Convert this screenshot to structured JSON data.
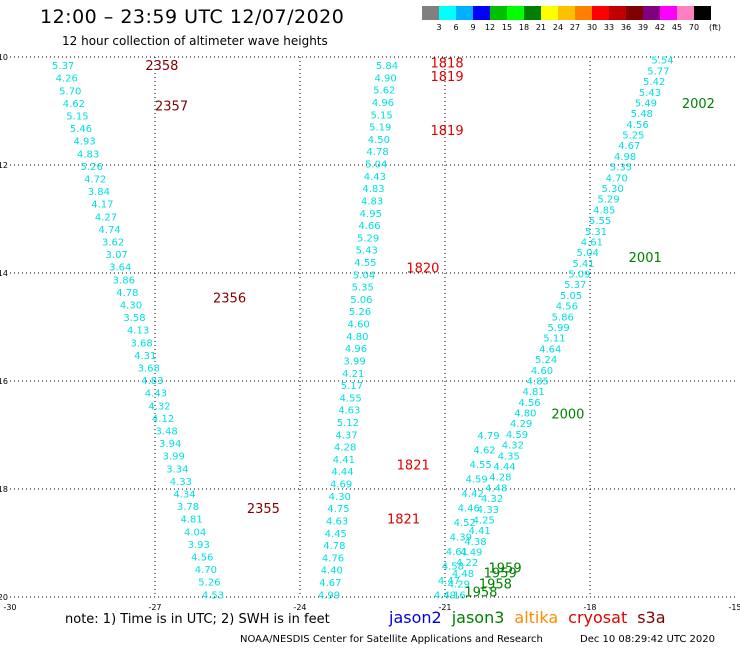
{
  "title": "12:00 – 23:59 UTC 12/07/2020",
  "subtitle": "12 hour collection of altimeter wave heights",
  "scale": {
    "unit_label": "(ft)",
    "labels": [
      "3",
      "6",
      "9",
      "12",
      "15",
      "18",
      "21",
      "24",
      "27",
      "30",
      "33",
      "36",
      "39",
      "42",
      "45",
      "70"
    ],
    "colors": [
      "#808080",
      "#00ffff",
      "#00b0ff",
      "#0000ff",
      "#00c000",
      "#00ff00",
      "#008000",
      "#ffff00",
      "#ffc000",
      "#ff8000",
      "#ff0000",
      "#c00000",
      "#800000",
      "#800080",
      "#ff00ff",
      "#ff80c0",
      "#000000"
    ]
  },
  "map": {
    "lon_range": [
      -30,
      -15
    ],
    "lat_range": [
      -20,
      -10
    ],
    "lon_ticks": [
      -30,
      -27,
      -24,
      -21,
      -18,
      -15
    ],
    "lat_ticks": [
      -10,
      -12,
      -14,
      -16,
      -18,
      -20
    ],
    "lon_tick_labels": [
      "-30",
      "-27",
      "-24",
      "-21",
      "-18",
      "-15"
    ],
    "lat_tick_labels": [
      "-10",
      "-12",
      "-14",
      "-16",
      "-18",
      "-20"
    ]
  },
  "tracks": [
    {
      "satellite": "cryosat",
      "start": [
        -28.9,
        -10.15
      ],
      "end": [
        -25.8,
        -19.95
      ],
      "values": [
        "5.37",
        "4.26",
        "5.70",
        "4.62",
        "5.15",
        "5.46",
        "4.93",
        "4.83",
        "5.26",
        "4.72",
        "3.84",
        "4.17",
        "4.27",
        "4.74",
        "3.62",
        "3.07",
        "3.64",
        "3.86",
        "4.78",
        "4.30",
        "3.58",
        "4.13",
        "3.68",
        "4.31",
        "3.68",
        "4.83",
        "4.43",
        "4.32",
        "4.12",
        "3.48",
        "3.94",
        "3.99",
        "3.34",
        "4.33",
        "4.34",
        "3.78",
        "4.81",
        "4.04",
        "3.93",
        "4.56",
        "4.70",
        "5.26",
        "4.53"
      ]
    },
    {
      "satellite": "cryosat",
      "start": [
        -22.2,
        -10.15
      ],
      "end": [
        -23.4,
        -19.95
      ],
      "values": [
        "5.84",
        "4.90",
        "5.62",
        "4.96",
        "5.15",
        "5.19",
        "4.50",
        "4.78",
        "5.04",
        "4.43",
        "4.83",
        "4.83",
        "4.95",
        "4.66",
        "5.29",
        "5.43",
        "4.55",
        "5.04",
        "5.35",
        "5.06",
        "5.26",
        "4.60",
        "4.80",
        "4.96",
        "3.99",
        "4.21",
        "5.17",
        "4.55",
        "4.63",
        "5.12",
        "4.37",
        "4.28",
        "4.41",
        "4.44",
        "4.69",
        "4.30",
        "4.75",
        "4.63",
        "4.45",
        "4.78",
        "4.76",
        "4.40",
        "4.67",
        "4.99"
      ]
    },
    {
      "satellite": "jason3",
      "start": [
        -16.5,
        -10.05
      ],
      "end": [
        -20.8,
        -19.95
      ],
      "values": [
        "5.54",
        "5.77",
        "5.42",
        "5.43",
        "5.49",
        "5.48",
        "4.56",
        "5.25",
        "4.67",
        "4.98",
        "5.35",
        "4.70",
        "5.30",
        "5.29",
        "4.85",
        "5.55",
        "5.31",
        "4.61",
        "5.04",
        "5.41",
        "5.09",
        "5.37",
        "5.05",
        "4.56",
        "5.86",
        "5.99",
        "5.11",
        "4.64",
        "5.24",
        "4.60",
        "4.85",
        "4.81",
        "4.56",
        "4.80",
        "4.29",
        "4.59",
        "4.32",
        "4.35",
        "4.44",
        "4.28",
        "4.48",
        "4.32",
        "4.33",
        "4.25",
        "4.41",
        "4.38",
        "4.49",
        "4.22",
        "4.48",
        "4.29",
        "4.16"
      ]
    },
    {
      "satellite": "jason3",
      "start": [
        -20.1,
        -17.0
      ],
      "end": [
        -21.0,
        -19.95
      ],
      "values": [
        "4.79",
        "4.62",
        "4.55",
        "4.59",
        "4.42",
        "4.46",
        "4.52",
        "4.39",
        "4.61",
        "4.58",
        "4.47",
        "4.49"
      ]
    }
  ],
  "pass_times": [
    {
      "text": "2358",
      "lon": -27.2,
      "lat": -10.15,
      "color": "#800000"
    },
    {
      "text": "2357",
      "lon": -27.0,
      "lat": -10.9,
      "color": "#800000"
    },
    {
      "text": "2356",
      "lon": -25.8,
      "lat": -14.45,
      "color": "#800000"
    },
    {
      "text": "2355",
      "lon": -25.1,
      "lat": -18.35,
      "color": "#800000"
    },
    {
      "text": "1818",
      "lon": -21.3,
      "lat": -10.1,
      "color": "#e00000"
    },
    {
      "text": "1819",
      "lon": -21.3,
      "lat": -10.35,
      "color": "#e00000"
    },
    {
      "text": "1819",
      "lon": -21.3,
      "lat": -11.35,
      "color": "#e00000"
    },
    {
      "text": "1820",
      "lon": -21.8,
      "lat": -13.9,
      "color": "#e00000"
    },
    {
      "text": "1821",
      "lon": -22.0,
      "lat": -17.55,
      "color": "#e00000"
    },
    {
      "text": "1821",
      "lon": -22.2,
      "lat": -18.55,
      "color": "#e00000"
    },
    {
      "text": "2002",
      "lon": -16.1,
      "lat": -10.85,
      "color": "#008000"
    },
    {
      "text": "2001",
      "lon": -17.2,
      "lat": -13.7,
      "color": "#008000"
    },
    {
      "text": "2000",
      "lon": -18.8,
      "lat": -16.6,
      "color": "#008000"
    },
    {
      "text": "1959",
      "lon": -20.1,
      "lat": -19.45,
      "color": "#008000"
    },
    {
      "text": "1959",
      "lon": -20.2,
      "lat": -19.55,
      "color": "#008000"
    },
    {
      "text": "1958",
      "lon": -20.3,
      "lat": -19.75,
      "color": "#008000"
    },
    {
      "text": "1958",
      "lon": -20.6,
      "lat": -19.9,
      "color": "#008000"
    }
  ],
  "note": "note: 1) Time is in UTC; 2) SWH is in feet",
  "satellites": [
    {
      "name": "jason2",
      "color": "#0000e0"
    },
    {
      "name": "jason3",
      "color": "#008000"
    },
    {
      "name": "altika",
      "color": "#ff8c00"
    },
    {
      "name": "cryosat",
      "color": "#e00000"
    },
    {
      "name": "s3a",
      "color": "#800000"
    }
  ],
  "credit": "NOAA/NESDIS Center for Satellite Applications and Research",
  "timestamp": "Dec 10 08:29:42 UTC 2020"
}
